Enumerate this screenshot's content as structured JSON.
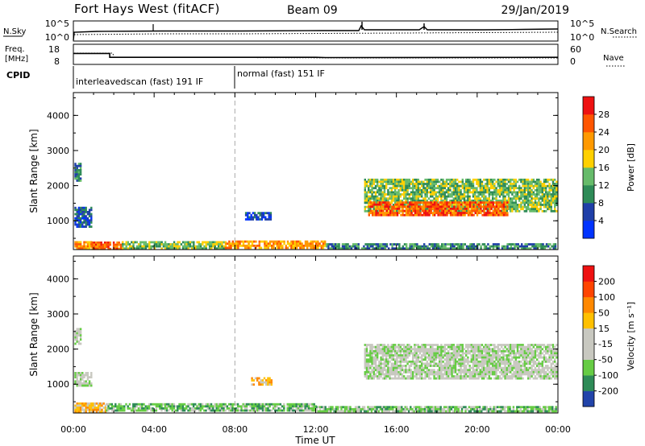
{
  "header": {
    "title": "Fort Hays West (fitACF)",
    "beam": "Beam 09",
    "date": "29/Jan/2019"
  },
  "top_panels": {
    "nsky_label": "N.Sky",
    "nsearch_label": "N.Search",
    "noise_tick_top": "10^5",
    "noise_tick_bottom": "10^0",
    "freq_label_line1": "Freq.",
    "freq_label_line2": "[MHz]",
    "freq_ticks": [
      "18",
      "8"
    ],
    "nave_label": "Nave",
    "nave_ticks": [
      "60",
      "0"
    ],
    "cpid_label": "CPID",
    "cpid_segments": [
      {
        "text": "interleavedscan (fast) 191 IF",
        "start_hour": 0,
        "end_hour": 8
      },
      {
        "text": "normal (fast) 151 IF",
        "start_hour": 8,
        "end_hour": 24
      }
    ],
    "freq_series": [
      {
        "hour": 0,
        "mhz": 14
      },
      {
        "hour": 1.8,
        "mhz": 14
      },
      {
        "hour": 1.8,
        "mhz": 11
      },
      {
        "hour": 12,
        "mhz": 11
      },
      {
        "hour": 12.5,
        "mhz": 10.8
      },
      {
        "hour": 24,
        "mhz": 11
      }
    ]
  },
  "chart_data": [
    {
      "type": "heatmap",
      "panel": "power",
      "ylabel": "Slant Range [km]",
      "yticks": [
        "4000",
        "3000",
        "2000",
        "1000"
      ],
      "ylim": [
        180,
        4650
      ],
      "xlim": [
        0,
        24
      ],
      "colorbar_label": "Power [dB]",
      "colorbar_ticks": [
        "28",
        "24",
        "20",
        "16",
        "12",
        "8",
        "4"
      ],
      "colors": [
        "#0033ff",
        "#1f3fa8",
        "#2e8b57",
        "#66bb6a",
        "#ffd000",
        "#ff9900",
        "#ff5500",
        "#ee1111"
      ],
      "regions": [
        {
          "t0": 0.05,
          "t1": 0.9,
          "r0": 220,
          "r1": 420,
          "level": 5
        },
        {
          "t0": 0.9,
          "t1": 2.4,
          "r0": 230,
          "r1": 410,
          "level": 6
        },
        {
          "t0": 2.4,
          "t1": 7.5,
          "r0": 240,
          "r1": 420,
          "level": 3
        },
        {
          "t0": 7.5,
          "t1": 12.5,
          "r0": 260,
          "r1": 440,
          "level": 5
        },
        {
          "t0": 12.5,
          "t1": 23.9,
          "r0": 220,
          "r1": 360,
          "level": 2
        },
        {
          "t0": 0.05,
          "t1": 0.9,
          "r0": 850,
          "r1": 1400,
          "level": 1
        },
        {
          "t0": 0.05,
          "t1": 0.35,
          "r0": 2150,
          "r1": 2650,
          "level": 2
        },
        {
          "t0": 8.5,
          "t1": 9.8,
          "r0": 1050,
          "r1": 1250,
          "level": 1
        },
        {
          "t0": 14.4,
          "t1": 23.9,
          "r0": 1300,
          "r1": 2200,
          "level": 3
        },
        {
          "t0": 14.6,
          "t1": 21.5,
          "r0": 1150,
          "r1": 1550,
          "level": 6
        }
      ]
    },
    {
      "type": "heatmap",
      "panel": "velocity",
      "ylabel": "Slant Range [km]",
      "yticks": [
        "4000",
        "3000",
        "2000",
        "1000"
      ],
      "ylim": [
        180,
        4650
      ],
      "xlim": [
        0,
        24
      ],
      "xticks": [
        "00:00",
        "04:00",
        "08:00",
        "12:00",
        "16:00",
        "20:00",
        "00:00"
      ],
      "xlabel": "Time UT",
      "colorbar_label": "Velocity [m s⁻¹]",
      "colorbar_ticks": [
        "200",
        "100",
        "50",
        "15",
        "-15",
        "-50",
        "-100",
        "-200"
      ],
      "colors": [
        "#2244aa",
        "#2e8b57",
        "#66cc44",
        "#c8c8c0",
        "#c8c8c0",
        "#ffc000",
        "#ff8800",
        "#ff4400",
        "#ee1111"
      ],
      "regions": [
        {
          "t0": 0.05,
          "t1": 1.6,
          "r0": 230,
          "r1": 480,
          "level": 5
        },
        {
          "t0": 1.6,
          "t1": 12.0,
          "r0": 230,
          "r1": 460,
          "level": 2
        },
        {
          "t0": 12.0,
          "t1": 23.9,
          "r0": 220,
          "r1": 380,
          "level": 2
        },
        {
          "t0": 0.05,
          "t1": 0.9,
          "r0": 950,
          "r1": 1350,
          "level": 3
        },
        {
          "t0": 0.05,
          "t1": 0.35,
          "r0": 2150,
          "r1": 2600,
          "level": 3
        },
        {
          "t0": 8.8,
          "t1": 9.8,
          "r0": 1000,
          "r1": 1200,
          "level": 5
        },
        {
          "t0": 14.4,
          "t1": 23.9,
          "r0": 1150,
          "r1": 2150,
          "level": 3
        }
      ]
    }
  ]
}
